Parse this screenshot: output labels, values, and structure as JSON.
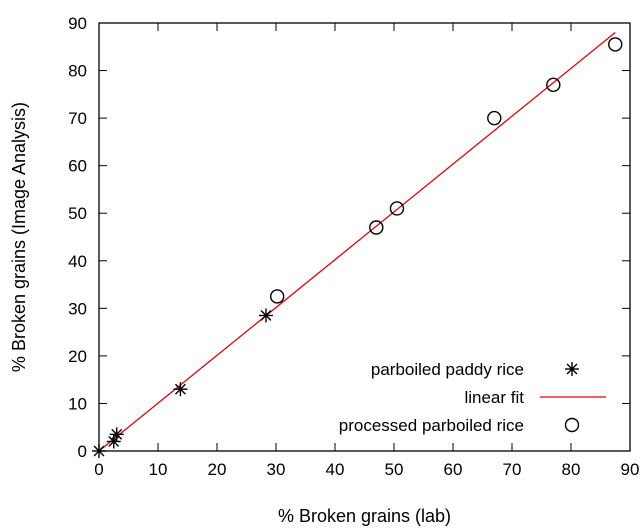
{
  "chart_data": {
    "type": "scatter",
    "xlabel": "% Broken grains (lab)",
    "ylabel": "% Broken grains (Image Analysis)",
    "xlim": [
      0,
      90
    ],
    "ylim": [
      0,
      90
    ],
    "xticks": [
      0,
      10,
      20,
      30,
      40,
      50,
      60,
      70,
      80,
      90
    ],
    "yticks": [
      0,
      10,
      20,
      30,
      40,
      50,
      60,
      70,
      80,
      90
    ],
    "grid": false,
    "legend_position": "bottom-right",
    "series": [
      {
        "name": "parboiled paddy rice",
        "marker": "asterisk",
        "color": "#000000",
        "points": [
          {
            "x": 0,
            "y": 0
          },
          {
            "x": 2.5,
            "y": 2
          },
          {
            "x": 3,
            "y": 3.5
          },
          {
            "x": 13.8,
            "y": 13
          },
          {
            "x": 28.3,
            "y": 28.5
          }
        ]
      },
      {
        "name": "linear fit",
        "marker": "line",
        "color": "#e8000b",
        "points": [
          {
            "x": 0,
            "y": 0
          },
          {
            "x": 87.5,
            "y": 88
          }
        ]
      },
      {
        "name": "processed parboiled rice",
        "marker": "circle",
        "color": "#000000",
        "points": [
          {
            "x": 30.2,
            "y": 32.5
          },
          {
            "x": 47,
            "y": 47
          },
          {
            "x": 50.5,
            "y": 51
          },
          {
            "x": 67,
            "y": 70
          },
          {
            "x": 77,
            "y": 77
          },
          {
            "x": 87.5,
            "y": 85.5
          }
        ]
      }
    ]
  }
}
